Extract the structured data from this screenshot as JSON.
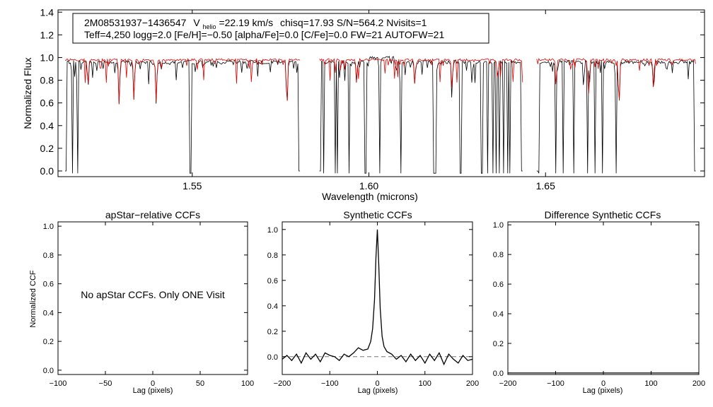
{
  "colors": {
    "observed": "#000000",
    "model": "#e00000",
    "axis": "#000000",
    "zero_line": "#777777"
  },
  "chart_data": [
    {
      "type": "line",
      "panel": "spectrum",
      "ylabel": "Normalized Flux",
      "xlabel": "Wavelength (microns)",
      "xlim": [
        1.512,
        1.695
      ],
      "ylim": [
        -0.05,
        1.42
      ],
      "xticks": [
        1.55,
        1.6,
        1.65
      ],
      "xtick_labels": [
        "1.55",
        "1.60",
        "1.65"
      ],
      "yticks": [
        0.0,
        0.2,
        0.4,
        0.6,
        0.8,
        1.0,
        1.2,
        1.4
      ],
      "ytick_labels": [
        "0.0",
        "0.2",
        "0.4",
        "0.6",
        "0.8",
        "1.0",
        "1.2",
        "1.4"
      ],
      "info": {
        "star_id": "2M08531937−1436547",
        "v_prefix": "V",
        "v_sub": "helio",
        "v_value": "=22.19 km/s",
        "line1_rest": "chisq=17.93  S/N=564.2  Nvisits=1",
        "line2": "Teff=4,250 logg=2.0 [Fe/H]=−0.50 [alpha/Fe]=0.0 [C/Fe]=0.0 FW=21 AUTOFW=21"
      },
      "chips": [
        [
          1.514,
          1.5805
        ],
        [
          1.586,
          1.6435
        ],
        [
          1.6475,
          1.6925
        ]
      ],
      "series": [
        {
          "name": "observed",
          "continuum": 0.96,
          "noise": 0.015
        },
        {
          "name": "synthetic model",
          "continuum": 0.98,
          "noise": 0.01
        }
      ],
      "strong_lines": [
        [
          1.5205,
          0.74
        ],
        [
          1.5293,
          0.58
        ],
        [
          1.5335,
          0.63
        ],
        [
          1.5398,
          0.6
        ],
        [
          1.5768,
          0.56
        ],
        [
          1.5965,
          0.78
        ],
        [
          1.613,
          0.76
        ],
        [
          1.6235,
          0.72
        ],
        [
          1.6364,
          0.81
        ],
        [
          1.6445,
          0.74
        ],
        [
          1.653,
          0.78
        ],
        [
          1.662,
          0.8
        ],
        [
          1.6708,
          0.57
        ],
        [
          1.6805,
          0.75
        ]
      ],
      "bad_pixels": [
        1.516,
        1.5175,
        1.5493,
        1.5497,
        1.5805,
        1.5872,
        1.5905,
        1.591,
        1.5945,
        1.599,
        1.603,
        1.609,
        1.6185,
        1.619,
        1.626,
        1.632,
        1.6335,
        1.635,
        1.636,
        1.637,
        1.638,
        1.6392,
        1.64,
        1.6435,
        1.648,
        1.653,
        1.655,
        1.658,
        1.662,
        1.664,
        1.666,
        1.67
      ]
    },
    {
      "type": "line",
      "panel": "apstar",
      "title": "apStar−relative CCFs",
      "xlabel": "Lag (pixels)",
      "ylabel": "Normalized CCF",
      "xlim": [
        -100,
        100
      ],
      "ylim": [
        -0.03,
        1.03
      ],
      "xticks": [
        -100,
        -50,
        0,
        50,
        100
      ],
      "xtick_labels": [
        "−100",
        "−50",
        "0",
        "50",
        "100"
      ],
      "yticks": [
        0.0,
        0.2,
        0.4,
        0.6,
        0.8,
        1.0
      ],
      "ytick_labels": [
        "0.0",
        "0.2",
        "0.4",
        "0.6",
        "0.8",
        "1.0"
      ],
      "message": "No apStar CCFs.  Only ONE Visit",
      "series": []
    },
    {
      "type": "line",
      "panel": "synthetic",
      "title": "Synthetic CCFs",
      "xlabel": "Lag (pixels)",
      "xlim": [
        -200,
        200
      ],
      "ylim": [
        -0.14,
        1.06
      ],
      "xticks": [
        -200,
        -100,
        0,
        100,
        200
      ],
      "xtick_labels": [
        "−200",
        "−100",
        "0",
        "100",
        "200"
      ],
      "yticks": [
        0.0,
        0.2,
        0.4,
        0.6,
        0.8,
        1.0
      ],
      "ytick_labels": [
        "0.0",
        "0.2",
        "0.4",
        "0.6",
        "0.8",
        "1.0"
      ],
      "zero_line": 0.0,
      "series": [
        {
          "name": "synthetic CCF",
          "peak_lag": 0,
          "peak_value": 1.0,
          "x": [
            -200,
            -190,
            -180,
            -170,
            -160,
            -150,
            -140,
            -130,
            -120,
            -110,
            -100,
            -90,
            -80,
            -70,
            -60,
            -50,
            -40,
            -30,
            -20,
            -14,
            -10,
            -6,
            -3,
            0,
            3,
            6,
            10,
            14,
            20,
            30,
            40,
            50,
            60,
            70,
            80,
            90,
            100,
            110,
            120,
            130,
            140,
            150,
            160,
            170,
            180,
            190,
            200
          ],
          "y": [
            -0.02,
            0.01,
            -0.03,
            0.02,
            -0.05,
            0.03,
            -0.02,
            0.02,
            -0.04,
            0.03,
            0.01,
            0.0,
            -0.03,
            0.02,
            0.0,
            0.03,
            0.07,
            0.05,
            0.06,
            0.12,
            0.22,
            0.45,
            0.78,
            1.0,
            0.72,
            0.38,
            0.16,
            0.08,
            0.04,
            0.02,
            -0.02,
            0.01,
            -0.04,
            0.02,
            -0.03,
            0.01,
            -0.05,
            0.02,
            -0.03,
            0.03,
            -0.06,
            0.02,
            -0.02,
            -0.05,
            0.01,
            -0.03,
            -0.02
          ]
        }
      ]
    },
    {
      "type": "line",
      "panel": "difference",
      "title": "Difference Synthetic CCFs",
      "xlabel": "Lag (pixels)",
      "xlim": [
        -200,
        200
      ],
      "ylim": [
        -0.01,
        1.02
      ],
      "xticks": [
        -200,
        -100,
        0,
        100,
        200
      ],
      "xtick_labels": [
        "−200",
        "−100",
        "0",
        "100",
        "200"
      ],
      "yticks": [
        0.0,
        0.2,
        0.4,
        0.6,
        0.8,
        1.0
      ],
      "ytick_labels": [
        "0.0",
        "0.2",
        "0.4",
        "0.6",
        "0.8",
        "1.0"
      ],
      "series": [
        {
          "name": "difference",
          "x": [
            -200,
            200
          ],
          "y": [
            0.0,
            0.0
          ]
        }
      ]
    }
  ]
}
